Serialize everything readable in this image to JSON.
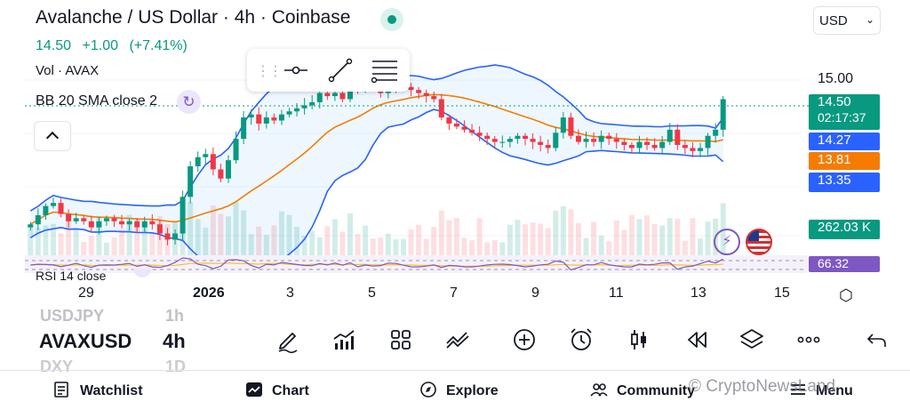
{
  "header": {
    "title": "Avalanche / US Dollar · 4h · Coinbase",
    "currency": "USD",
    "price": "14.50",
    "change_abs": "+1.00",
    "change_pct": "(+7.41%)"
  },
  "indicators": {
    "volume_label": "Vol · AVAX",
    "bb_label": "BB 20 SMA close 2",
    "rsi_label": "RSI 14 close"
  },
  "price_axis": {
    "tick_15": "15.00",
    "last_price": "14.50",
    "countdown": "02:17:37",
    "bb_upper": "14.27",
    "bb_basis": "13.81",
    "bb_lower": "13.35",
    "volume": "262.03 K",
    "rsi": "66.32"
  },
  "time_axis": [
    "29",
    "2026",
    "3",
    "5",
    "7",
    "9",
    "11",
    "13",
    "15"
  ],
  "symbols": {
    "ghost_top": "USDJPY",
    "ghost_top_tf": "1h",
    "current": "AVAXUSD",
    "current_tf": "4h",
    "ghost_bottom": "DXY",
    "ghost_bottom_tf": "1D"
  },
  "bottom_nav": {
    "watchlist": "Watchlist",
    "chart": "Chart",
    "explore": "Explore",
    "community": "Community",
    "menu": "Menu"
  },
  "watermark": "© CryptoNewsLand",
  "colors": {
    "up": "#089981",
    "down": "#f23645",
    "bb_band": "#2962ff",
    "bb_basis": "#f57c00",
    "rsi": "#7e57c2",
    "rsi_ma": "#fbc02d"
  },
  "chart_data": {
    "type": "candlestick",
    "symbol": "AVAXUSD",
    "timeframe": "4h",
    "ylim": [
      11.9,
      15.25
    ],
    "candles_start_close": 12.4,
    "close_path": [
      12.45,
      12.6,
      12.75,
      12.8,
      12.62,
      12.5,
      12.55,
      12.5,
      12.4,
      12.5,
      12.55,
      12.5,
      12.45,
      12.5,
      12.4,
      12.5,
      12.45,
      12.3,
      12.2,
      12.3,
      12.9,
      13.4,
      13.55,
      13.6,
      13.35,
      13.2,
      13.5,
      13.85,
      14.2,
      14.25,
      14.1,
      14.2,
      14.15,
      14.25,
      14.3,
      14.35,
      14.4,
      14.45,
      14.6,
      14.55,
      14.6,
      14.5,
      14.7,
      14.65,
      14.75,
      14.7,
      14.6,
      14.65,
      14.7,
      14.7,
      14.65,
      14.6,
      14.55,
      14.5,
      14.2,
      14.1,
      14.05,
      14.0,
      13.95,
      13.9,
      13.85,
      13.8,
      13.8,
      13.85,
      13.9,
      13.85,
      13.8,
      13.75,
      13.7,
      13.95,
      14.2,
      13.9,
      13.8,
      13.85,
      13.8,
      13.9,
      13.85,
      13.8,
      13.75,
      13.7,
      13.8,
      13.75,
      13.7,
      13.8,
      14.0,
      13.75,
      13.7,
      13.65,
      13.7,
      13.9,
      14.0,
      14.5
    ]
  }
}
